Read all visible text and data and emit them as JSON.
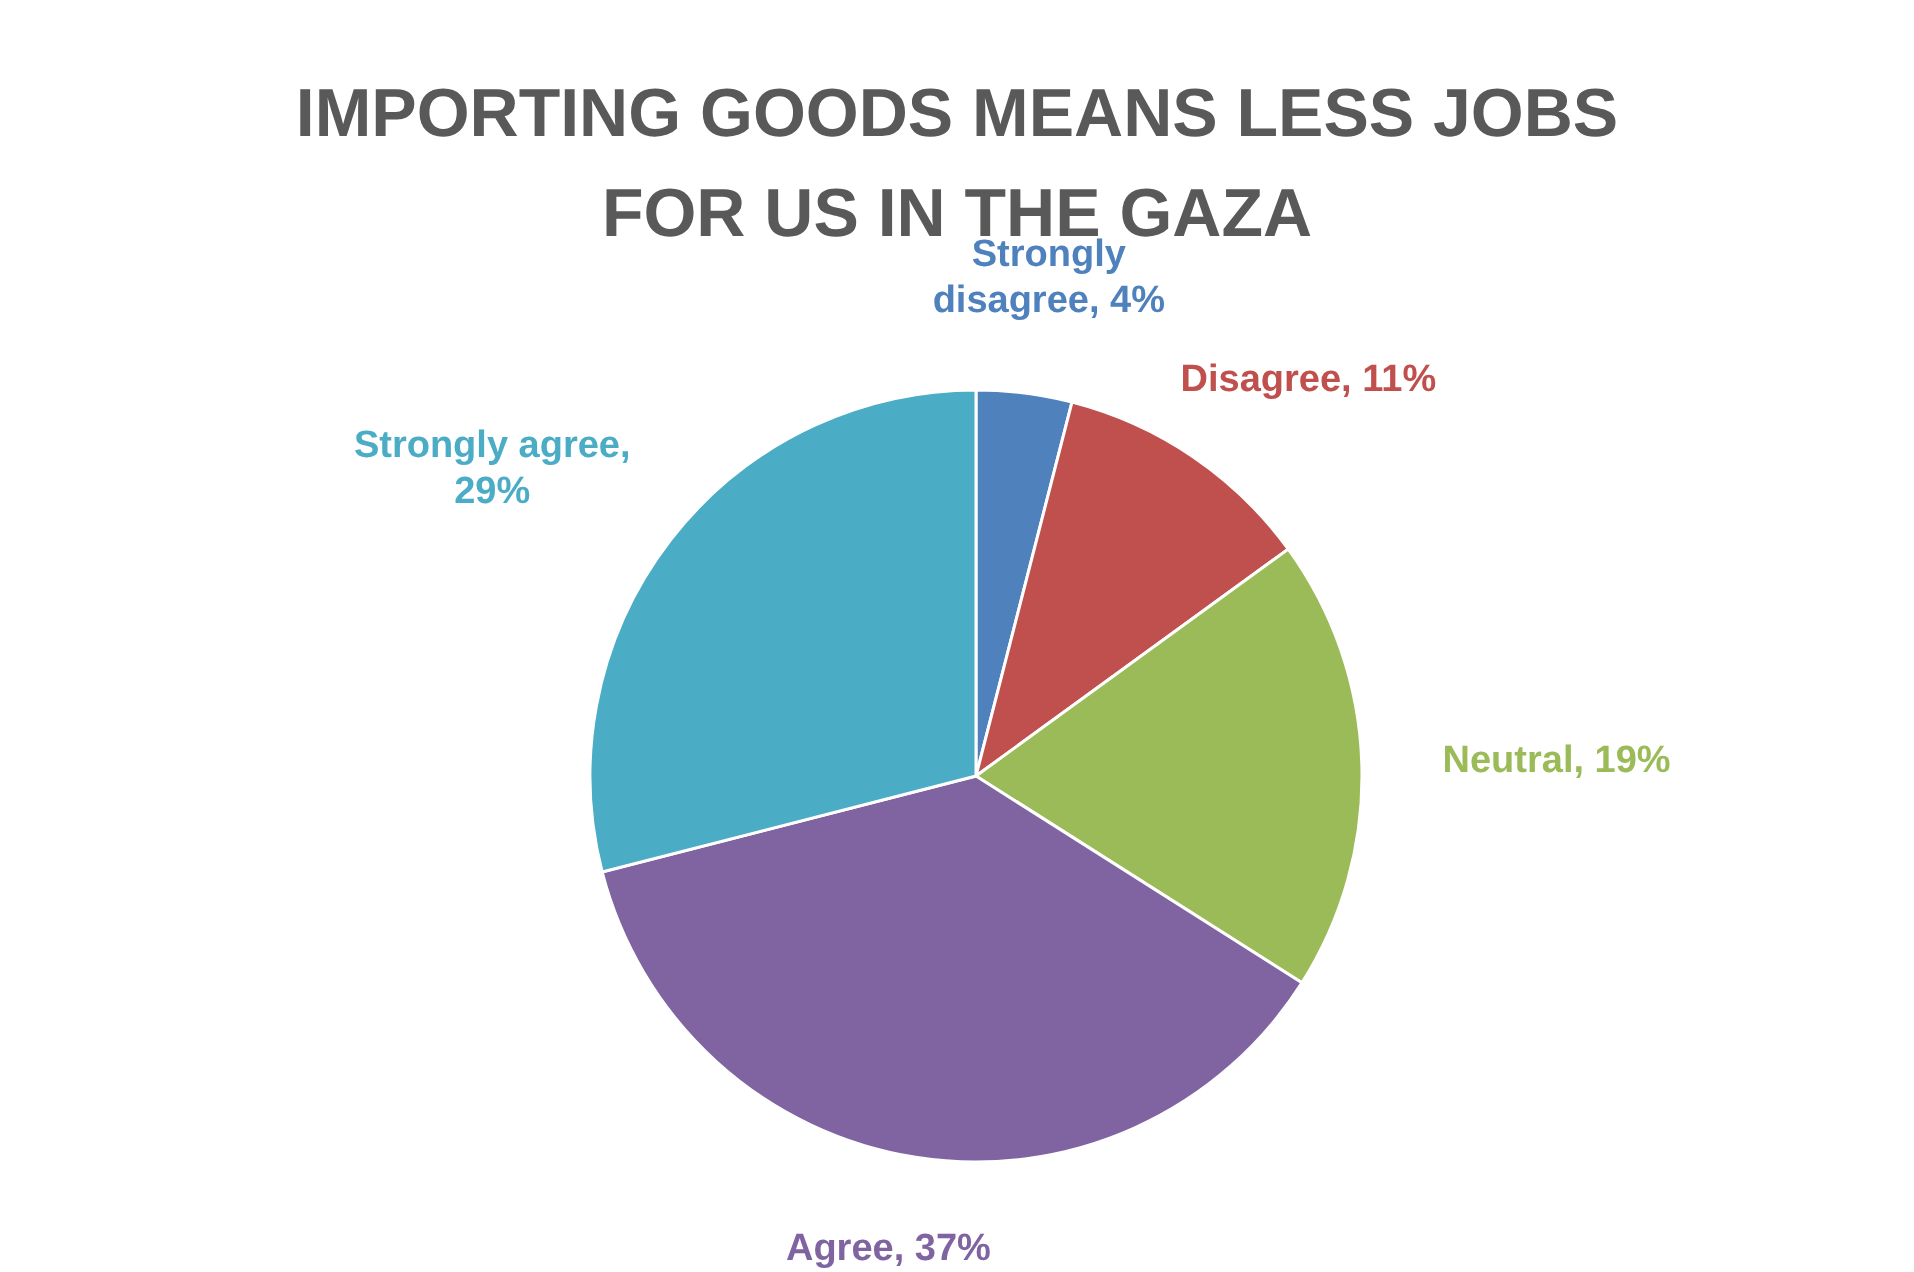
{
  "chart_data": {
    "type": "pie",
    "title": "IMPORTING GOODS MEANS LESS JOBS FOR US IN THE GAZA",
    "categories": [
      "Strongly disagree",
      "Disagree",
      "Neutral",
      "Agree",
      "Strongly agree"
    ],
    "values": [
      4,
      11,
      19,
      37,
      29
    ],
    "value_labels": [
      ", 4%",
      ", 11%",
      ", 19%",
      ", 37%",
      ", 29%"
    ],
    "colors": [
      "#4f81bd",
      "#c0504d",
      "#9bbb59",
      "#8064a2",
      "#4bacc6"
    ],
    "legend": false
  }
}
